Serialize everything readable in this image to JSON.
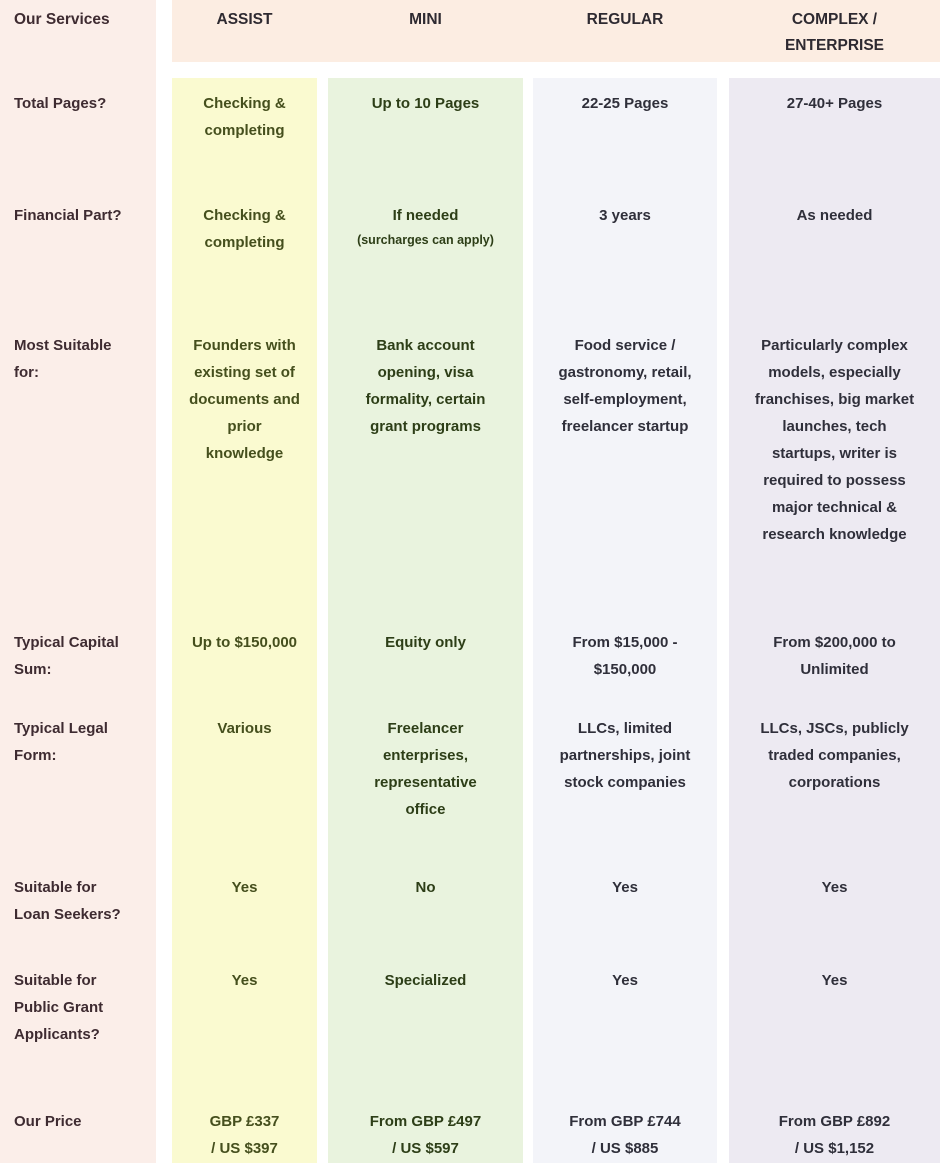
{
  "header": {
    "services_label": "Our Services",
    "columns": [
      "ASSIST",
      "MINI",
      "REGULAR",
      "COMPLEX /\nENTERPRISE"
    ]
  },
  "rows": [
    {
      "label": "Total Pages?",
      "cells": [
        "Checking &\ncompleting",
        "Up to 10 Pages",
        "22-25 Pages",
        "27-40+ Pages"
      ]
    },
    {
      "label": "Financial Part?",
      "cells": [
        "Checking &\ncompleting",
        "If needed",
        "3 years",
        "As needed"
      ],
      "note": "(surcharges can apply)"
    },
    {
      "label": "Most Suitable\nfor:",
      "cells": [
        "Founders with\nexisting set of\ndocuments and\nprior\nknowledge",
        "Bank account\nopening, visa\nformality, certain\ngrant programs",
        "Food service /\ngastronomy, retail,\nself-employment,\nfreelancer startup",
        "Particularly complex\nmodels, especially\nfranchises, big market\nlaunches, tech\nstartups, writer is\nrequired to possess\nmajor technical &\nresearch knowledge"
      ]
    },
    {
      "label": "Typical Capital\nSum:",
      "cells": [
        "Up to $150,000",
        "Equity only",
        "From $15,000 -\n$150,000",
        "From $200,000 to\nUnlimited"
      ]
    },
    {
      "label": "Typical Legal\nForm:",
      "cells": [
        "Various",
        "Freelancer\nenterprises,\nrepresentative\noffice",
        "LLCs, limited\npartnerships, joint\nstock companies",
        "LLCs, JSCs, publicly\ntraded companies,\ncorporations"
      ]
    },
    {
      "label": "Suitable for\nLoan Seekers?",
      "cells": [
        "Yes",
        "No",
        "Yes",
        "Yes"
      ]
    },
    {
      "label": "Suitable for\nPublic Grant\nApplicants?",
      "cells": [
        "Yes",
        "Specialized",
        "Yes",
        "Yes"
      ]
    },
    {
      "label": "Our Price",
      "cells": [
        "GBP £337\n/ US $397",
        "From GBP £497\n/ US $597",
        "From GBP £744\n/ US $885",
        "From GBP £892\n/ US $1,152"
      ]
    }
  ],
  "colors": {
    "page_background": "#ffffff",
    "label_column_bg": "#fbeee9",
    "label_text": "#3e2b31",
    "header_band_bg": "#fcede2",
    "header_text": "#2e2a31",
    "assist_bg": "#fafad0",
    "assist_text": "#454f1d",
    "mini_bg": "#e9f3de",
    "mini_text": "#2d3e17",
    "regular_bg": "#f3f4f9",
    "complex_bg": "#edeaf2",
    "blue_columns_text": "#2f2f3a"
  },
  "chart_data": {
    "type": "table",
    "title": "Our Services",
    "columns": [
      "Our Services",
      "ASSIST",
      "MINI",
      "REGULAR",
      "COMPLEX / ENTERPRISE"
    ],
    "rows": [
      [
        "Total Pages?",
        "Checking & completing",
        "Up to 10 Pages",
        "22-25 Pages",
        "27-40+ Pages"
      ],
      [
        "Financial Part?",
        "Checking & completing",
        "If needed (surcharges can apply)",
        "3 years",
        "As needed"
      ],
      [
        "Most Suitable for:",
        "Founders with existing set of documents and prior knowledge",
        "Bank account opening, visa formality, certain grant programs",
        "Food service / gastronomy, retail, self-employment, freelancer startup",
        "Particularly complex models, especially franchises, big market launches, tech startups, writer is required to possess major technical & research knowledge"
      ],
      [
        "Typical Capital Sum:",
        "Up to $150,000",
        "Equity only",
        "From $15,000 - $150,000",
        "From $200,000 to Unlimited"
      ],
      [
        "Typical Legal Form:",
        "Various",
        "Freelancer enterprises, representative office",
        "LLCs, limited partnerships, joint stock companies",
        "LLCs, JSCs, publicly traded companies, corporations"
      ],
      [
        "Suitable for Loan Seekers?",
        "Yes",
        "No",
        "Yes",
        "Yes"
      ],
      [
        "Suitable for Public Grant Applicants?",
        "Yes",
        "Specialized",
        "Yes",
        "Yes"
      ],
      [
        "Our Price",
        "GBP £337 / US $397",
        "From GBP £497 / US $597",
        "From GBP £744 / US $885",
        "From GBP £892 / US $1,152"
      ]
    ],
    "layout": {
      "grid": false,
      "legend": "none",
      "column_tints": [
        "pink",
        "yellow",
        "green",
        "blue-gray",
        "lavender"
      ]
    }
  }
}
